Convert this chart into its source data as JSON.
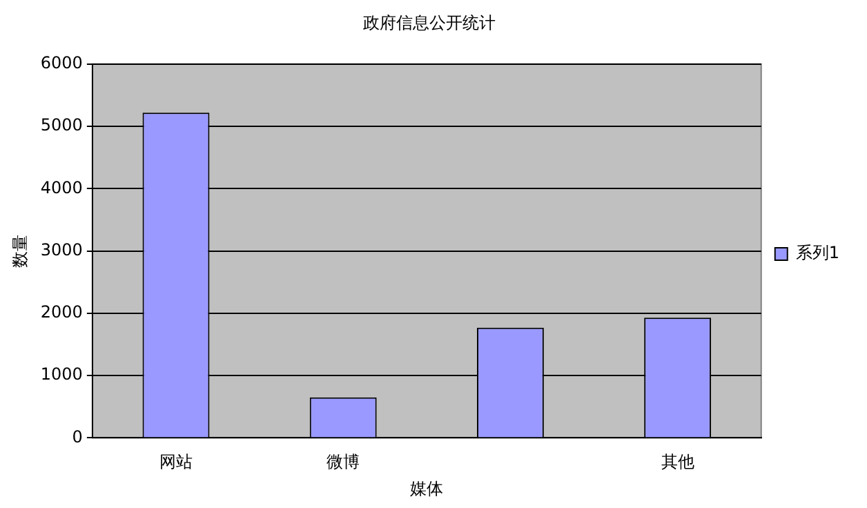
{
  "chart_data": {
    "type": "bar",
    "title": "政府信息公开统计",
    "xlabel": "媒体",
    "ylabel": "数量",
    "categories": [
      "网站",
      "微博",
      null,
      "其他"
    ],
    "series": [
      {
        "name": "系列1",
        "color": "#9999ff",
        "values": [
          5220,
          650,
          1770,
          1930
        ]
      }
    ],
    "ylim": [
      0,
      6000
    ],
    "yticks": [
      0,
      1000,
      2000,
      3000,
      4000,
      5000,
      6000
    ],
    "grid": "y",
    "legend": "right"
  }
}
